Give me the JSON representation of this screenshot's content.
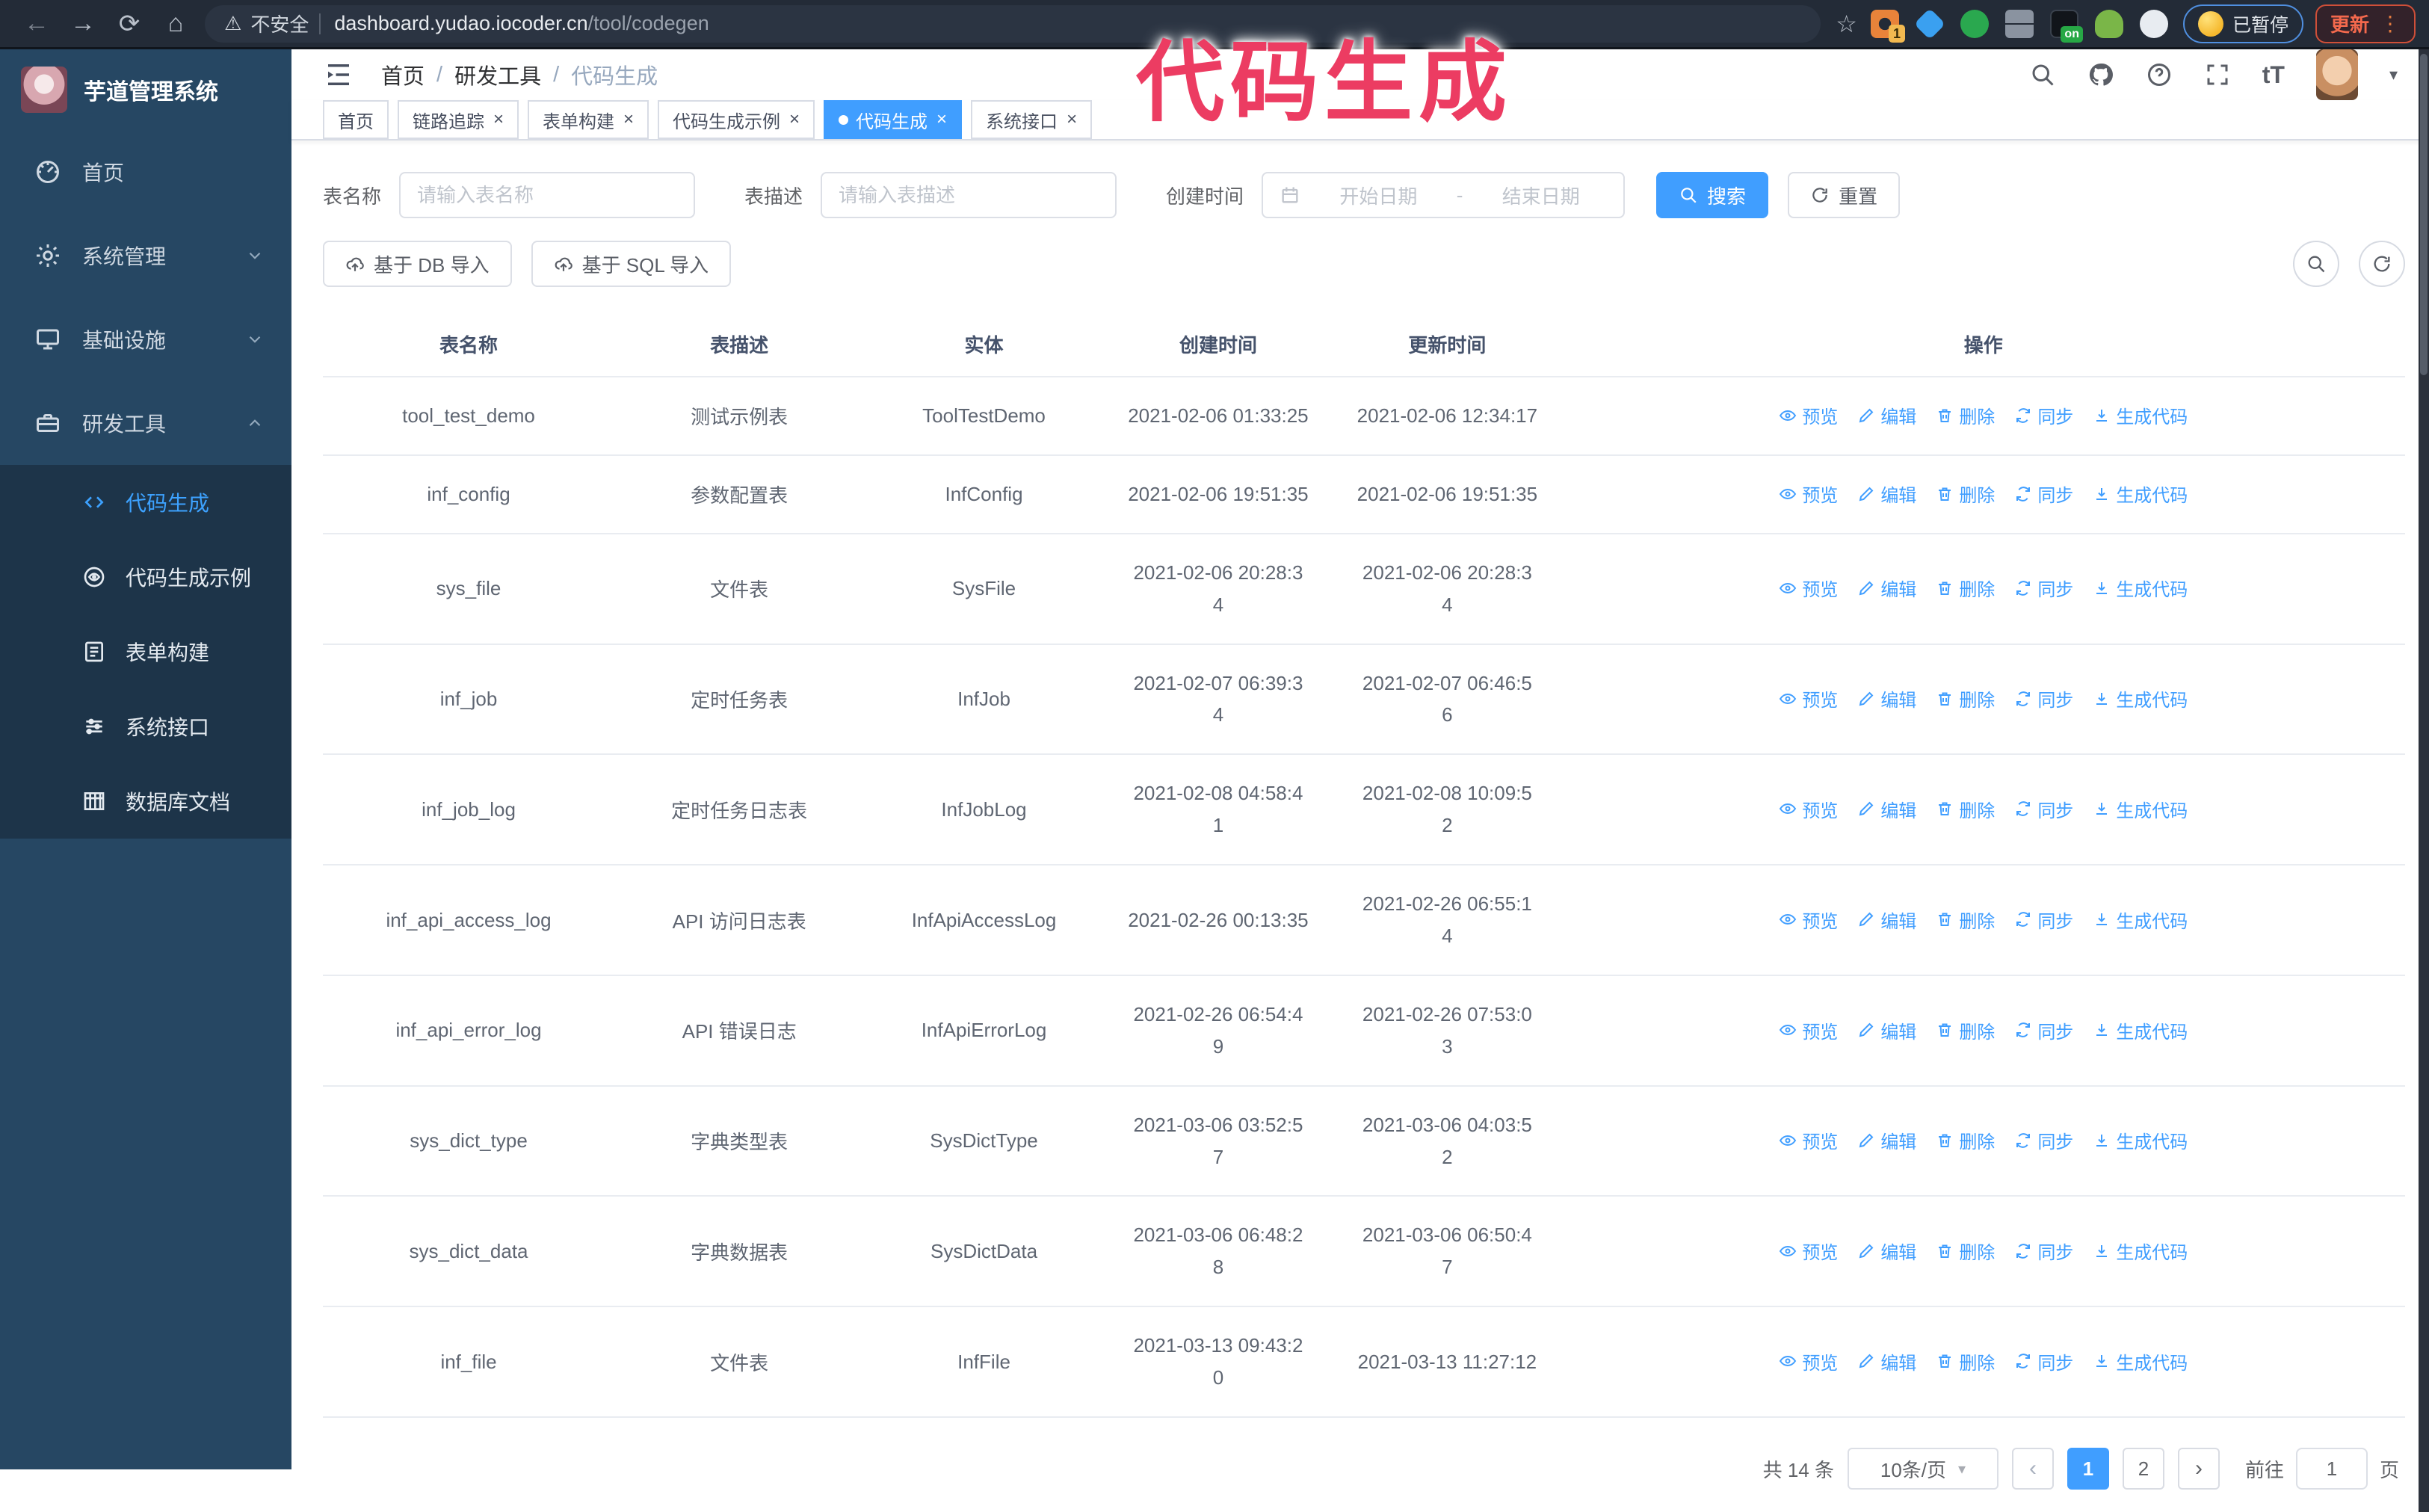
{
  "browser": {
    "security_label": "不安全",
    "url_domain": "dashboard.yudao.iocoder.cn",
    "url_path": "/tool/codegen",
    "extension_badge": "1",
    "extension_on_label": "on",
    "profile_chip_label": "已暂停",
    "update_button_label": "更新",
    "menu_dots": "⋮"
  },
  "watermark": "代码生成",
  "sidebar": {
    "title": "芋道管理系统",
    "items": [
      {
        "label": "首页",
        "icon": "dashboard-icon",
        "chevron": null
      },
      {
        "label": "系统管理",
        "icon": "gear-icon",
        "chevron": "down"
      },
      {
        "label": "基础设施",
        "icon": "monitor-icon",
        "chevron": "down"
      },
      {
        "label": "研发工具",
        "icon": "toolbox-icon",
        "chevron": "up"
      }
    ],
    "submenu": [
      {
        "label": "代码生成",
        "icon": "code-icon",
        "active": true
      },
      {
        "label": "代码生成示例",
        "icon": "example-icon",
        "active": false
      },
      {
        "label": "表单构建",
        "icon": "form-icon",
        "active": false
      },
      {
        "label": "系统接口",
        "icon": "api-icon",
        "active": false
      },
      {
        "label": "数据库文档",
        "icon": "table-icon",
        "active": false
      }
    ]
  },
  "navbar": {
    "breadcrumb": [
      "首页",
      "研发工具",
      "代码生成"
    ],
    "font_size_tool": "tT"
  },
  "tabs": [
    {
      "label": "首页",
      "closable": false,
      "active": false
    },
    {
      "label": "链路追踪",
      "closable": true,
      "active": false
    },
    {
      "label": "表单构建",
      "closable": true,
      "active": false
    },
    {
      "label": "代码生成示例",
      "closable": true,
      "active": false
    },
    {
      "label": "代码生成",
      "closable": true,
      "active": true
    },
    {
      "label": "系统接口",
      "closable": true,
      "active": false
    }
  ],
  "search": {
    "name_label": "表名称",
    "name_placeholder": "请输入表名称",
    "desc_label": "表描述",
    "desc_placeholder": "请输入表描述",
    "time_label": "创建时间",
    "start_placeholder": "开始日期",
    "range_separator": "-",
    "end_placeholder": "结束日期",
    "search_label": "搜索",
    "reset_label": "重置"
  },
  "toolbar": {
    "import_db_label": "基于 DB 导入",
    "import_sql_label": "基于 SQL 导入"
  },
  "table": {
    "headers": [
      "表名称",
      "表描述",
      "实体",
      "创建时间",
      "更新时间",
      "操作"
    ],
    "action_labels": [
      "预览",
      "编辑",
      "删除",
      "同步",
      "生成代码"
    ],
    "rows": [
      {
        "name": "tool_test_demo",
        "desc": "测试示例表",
        "entity": "ToolTestDemo",
        "created": [
          "2021-02-06 01:33:25"
        ],
        "updated": [
          "2021-02-06 12:34:17"
        ]
      },
      {
        "name": "inf_config",
        "desc": "参数配置表",
        "entity": "InfConfig",
        "created": [
          "2021-02-06 19:51:35"
        ],
        "updated": [
          "2021-02-06 19:51:35"
        ]
      },
      {
        "name": "sys_file",
        "desc": "文件表",
        "entity": "SysFile",
        "created": [
          "2021-02-06 20:28:3",
          "4"
        ],
        "updated": [
          "2021-02-06 20:28:3",
          "4"
        ]
      },
      {
        "name": "inf_job",
        "desc": "定时任务表",
        "entity": "InfJob",
        "created": [
          "2021-02-07 06:39:3",
          "4"
        ],
        "updated": [
          "2021-02-07 06:46:5",
          "6"
        ]
      },
      {
        "name": "inf_job_log",
        "desc": "定时任务日志表",
        "entity": "InfJobLog",
        "created": [
          "2021-02-08 04:58:4",
          "1"
        ],
        "updated": [
          "2021-02-08 10:09:5",
          "2"
        ]
      },
      {
        "name": "inf_api_access_log",
        "desc": "API 访问日志表",
        "entity": "InfApiAccessLog",
        "created": [
          "2021-02-26 00:13:35"
        ],
        "updated": [
          "2021-02-26 06:55:1",
          "4"
        ]
      },
      {
        "name": "inf_api_error_log",
        "desc": "API 错误日志",
        "entity": "InfApiErrorLog",
        "created": [
          "2021-02-26 06:54:4",
          "9"
        ],
        "updated": [
          "2021-02-26 07:53:0",
          "3"
        ]
      },
      {
        "name": "sys_dict_type",
        "desc": "字典类型表",
        "entity": "SysDictType",
        "created": [
          "2021-03-06 03:52:5",
          "7"
        ],
        "updated": [
          "2021-03-06 04:03:5",
          "2"
        ]
      },
      {
        "name": "sys_dict_data",
        "desc": "字典数据表",
        "entity": "SysDictData",
        "created": [
          "2021-03-06 06:48:2",
          "8"
        ],
        "updated": [
          "2021-03-06 06:50:4",
          "7"
        ]
      },
      {
        "name": "inf_file",
        "desc": "文件表",
        "entity": "InfFile",
        "created": [
          "2021-03-13 09:43:2",
          "0"
        ],
        "updated": [
          "2021-03-13 11:27:12"
        ]
      }
    ]
  },
  "pagination": {
    "total": "共 14 条",
    "page_size": "10条/页",
    "pages": [
      "1",
      "2"
    ],
    "active_page": "1",
    "goto_label": "前往",
    "goto_value": "1",
    "page_unit": "页"
  },
  "colors": {
    "primary": "#409eff",
    "watermark": "#ec3c62",
    "sidebar_bg": "#264763",
    "submenu_bg": "#1d3449",
    "browser_bar_bg": "#232b37"
  }
}
